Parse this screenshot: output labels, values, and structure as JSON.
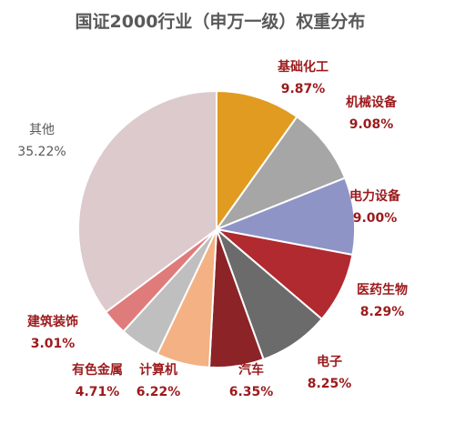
{
  "chart_data": {
    "type": "pie",
    "title": "国证2000行业（申万一级）权重分布",
    "slices": [
      {
        "label": "基础化工",
        "value": 9.87,
        "value_text": "9.87%",
        "color": "#E09B20",
        "label_color": "#9C1A1C"
      },
      {
        "label": "机械设备",
        "value": 9.08,
        "value_text": "9.08%",
        "color": "#A6A6A6",
        "label_color": "#9C1A1C"
      },
      {
        "label": "电力设备",
        "value": 9.0,
        "value_text": "9.00%",
        "color": "#8E95C6",
        "label_color": "#9C1A1C"
      },
      {
        "label": "医药生物",
        "value": 8.29,
        "value_text": "8.29%",
        "color": "#B02A30",
        "label_color": "#9C1A1C"
      },
      {
        "label": "电子",
        "value": 8.25,
        "value_text": "8.25%",
        "color": "#6B6B6B",
        "label_color": "#9C1A1C"
      },
      {
        "label": "汽车",
        "value": 6.35,
        "value_text": "6.35%",
        "color": "#8B2327",
        "label_color": "#9C1A1C"
      },
      {
        "label": "计算机",
        "value": 6.22,
        "value_text": "6.22%",
        "color": "#F4B183",
        "label_color": "#9C1A1C"
      },
      {
        "label": "有色金属",
        "value": 4.71,
        "value_text": "4.71%",
        "color": "#BFBFBF",
        "label_color": "#9C1A1C"
      },
      {
        "label": "建筑装饰",
        "value": 3.01,
        "value_text": "3.01%",
        "color": "#E07B7B",
        "label_color": "#9C1A1C"
      },
      {
        "label": "其他",
        "value": 35.22,
        "value_text": "35.22%",
        "color": "#DCCACC",
        "label_color": "#595959"
      }
    ]
  }
}
